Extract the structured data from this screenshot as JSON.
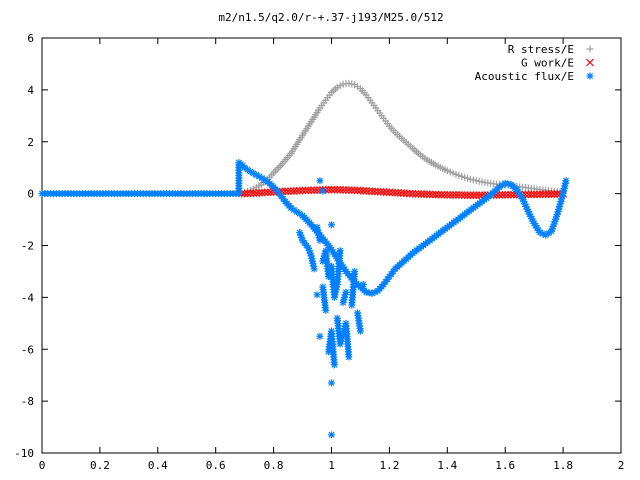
{
  "chart_data": {
    "type": "scatter",
    "title": "m2/n1.5/q2.0/r-+.37-j193/M25.0/512",
    "xlabel": "",
    "ylabel": "",
    "xlim": [
      0,
      2
    ],
    "ylim": [
      -10,
      6
    ],
    "xticks": [
      0,
      0.2,
      0.4,
      0.6,
      0.8,
      1,
      1.2,
      1.4,
      1.6,
      1.8,
      2
    ],
    "xtick_labels": [
      "0",
      "0.2",
      "0.4",
      "0.6",
      "0.8",
      "1",
      "1.2",
      "1.4",
      "1.6",
      "1.8",
      "2"
    ],
    "yticks": [
      -10,
      -8,
      -6,
      -4,
      -2,
      0,
      2,
      4,
      6
    ],
    "ytick_labels": [
      "-10",
      "-8",
      "-6",
      "-4",
      "-2",
      "0",
      "2",
      "4",
      "6"
    ],
    "grid": false,
    "legend_position": "top-right",
    "series": [
      {
        "name": "R stress/E",
        "color": "#a0a0a0",
        "marker": "plus",
        "points": [
          [
            0.69,
            0.0
          ],
          [
            0.72,
            0.12
          ],
          [
            0.75,
            0.3
          ],
          [
            0.78,
            0.55
          ],
          [
            0.8,
            0.8
          ],
          [
            0.83,
            1.15
          ],
          [
            0.86,
            1.55
          ],
          [
            0.88,
            1.9
          ],
          [
            0.9,
            2.25
          ],
          [
            0.92,
            2.6
          ],
          [
            0.94,
            2.95
          ],
          [
            0.96,
            3.3
          ],
          [
            0.98,
            3.6
          ],
          [
            1.0,
            3.9
          ],
          [
            1.02,
            4.1
          ],
          [
            1.04,
            4.22
          ],
          [
            1.06,
            4.25
          ],
          [
            1.08,
            4.2
          ],
          [
            1.1,
            4.05
          ],
          [
            1.12,
            3.8
          ],
          [
            1.14,
            3.5
          ],
          [
            1.16,
            3.2
          ],
          [
            1.18,
            2.9
          ],
          [
            1.2,
            2.6
          ],
          [
            1.22,
            2.35
          ],
          [
            1.25,
            2.05
          ],
          [
            1.28,
            1.75
          ],
          [
            1.3,
            1.55
          ],
          [
            1.33,
            1.3
          ],
          [
            1.36,
            1.1
          ],
          [
            1.4,
            0.88
          ],
          [
            1.44,
            0.7
          ],
          [
            1.48,
            0.55
          ],
          [
            1.52,
            0.45
          ],
          [
            1.56,
            0.38
          ],
          [
            1.6,
            0.33
          ],
          [
            1.64,
            0.28
          ],
          [
            1.68,
            0.22
          ],
          [
            1.72,
            0.16
          ],
          [
            1.76,
            0.1
          ],
          [
            1.8,
            0.05
          ]
        ]
      },
      {
        "name": "G work/E",
        "color": "#ff0000",
        "marker": "cross",
        "points": [
          [
            0.69,
            0.0
          ],
          [
            0.72,
            0.01
          ],
          [
            0.75,
            0.03
          ],
          [
            0.78,
            0.05
          ],
          [
            0.81,
            0.07
          ],
          [
            0.84,
            0.09
          ],
          [
            0.87,
            0.1
          ],
          [
            0.9,
            0.12
          ],
          [
            0.93,
            0.13
          ],
          [
            0.96,
            0.14
          ],
          [
            0.99,
            0.15
          ],
          [
            1.02,
            0.15
          ],
          [
            1.05,
            0.14
          ],
          [
            1.08,
            0.13
          ],
          [
            1.11,
            0.11
          ],
          [
            1.14,
            0.09
          ],
          [
            1.17,
            0.07
          ],
          [
            1.2,
            0.05
          ],
          [
            1.23,
            0.03
          ],
          [
            1.26,
            0.01
          ],
          [
            1.29,
            -0.01
          ],
          [
            1.32,
            -0.02
          ],
          [
            1.35,
            -0.03
          ],
          [
            1.38,
            -0.04
          ],
          [
            1.41,
            -0.05
          ],
          [
            1.44,
            -0.05
          ],
          [
            1.47,
            -0.06
          ],
          [
            1.5,
            -0.06
          ],
          [
            1.53,
            -0.06
          ],
          [
            1.56,
            -0.05
          ],
          [
            1.59,
            -0.05
          ],
          [
            1.62,
            -0.04
          ],
          [
            1.65,
            -0.04
          ],
          [
            1.68,
            -0.03
          ],
          [
            1.71,
            -0.03
          ],
          [
            1.74,
            -0.02
          ],
          [
            1.77,
            -0.02
          ],
          [
            1.8,
            -0.01
          ]
        ]
      },
      {
        "name": "Acoustic flux/E",
        "color": "#0080ff",
        "marker": "star",
        "points": [
          [
            0.0,
            0.0
          ],
          [
            0.03,
            0.0
          ],
          [
            0.06,
            0.0
          ],
          [
            0.09,
            0.0
          ],
          [
            0.12,
            0.0
          ],
          [
            0.15,
            0.0
          ],
          [
            0.18,
            0.0
          ],
          [
            0.21,
            0.0
          ],
          [
            0.24,
            0.0
          ],
          [
            0.27,
            0.0
          ],
          [
            0.3,
            0.0
          ],
          [
            0.33,
            0.0
          ],
          [
            0.36,
            0.0
          ],
          [
            0.39,
            0.0
          ],
          [
            0.42,
            0.0
          ],
          [
            0.45,
            0.0
          ],
          [
            0.48,
            0.0
          ],
          [
            0.51,
            0.0
          ],
          [
            0.54,
            0.0
          ],
          [
            0.57,
            0.0
          ],
          [
            0.6,
            0.0
          ],
          [
            0.63,
            0.0
          ],
          [
            0.66,
            0.0
          ],
          [
            0.68,
            0.0
          ],
          [
            0.68,
            1.2
          ],
          [
            0.7,
            1.0
          ],
          [
            0.72,
            0.85
          ],
          [
            0.74,
            0.72
          ],
          [
            0.76,
            0.6
          ],
          [
            0.78,
            0.45
          ],
          [
            0.8,
            0.25
          ],
          [
            0.82,
            0.0
          ],
          [
            0.84,
            -0.3
          ],
          [
            0.86,
            -0.55
          ],
          [
            0.88,
            -0.7
          ],
          [
            0.9,
            -0.85
          ],
          [
            0.93,
            -1.2
          ],
          [
            0.96,
            -1.6
          ],
          [
            0.99,
            -2.0
          ],
          [
            1.02,
            -2.5
          ],
          [
            1.05,
            -3.0
          ],
          [
            1.08,
            -3.4
          ],
          [
            1.1,
            -3.6
          ],
          [
            1.12,
            -3.8
          ],
          [
            1.14,
            -3.85
          ],
          [
            1.16,
            -3.75
          ],
          [
            1.18,
            -3.5
          ],
          [
            1.2,
            -3.2
          ],
          [
            1.22,
            -2.9
          ],
          [
            1.25,
            -2.6
          ],
          [
            1.28,
            -2.3
          ],
          [
            1.31,
            -2.05
          ],
          [
            1.34,
            -1.8
          ],
          [
            1.37,
            -1.55
          ],
          [
            1.4,
            -1.3
          ],
          [
            1.43,
            -1.05
          ],
          [
            1.46,
            -0.8
          ],
          [
            1.49,
            -0.55
          ],
          [
            1.52,
            -0.3
          ],
          [
            1.55,
            -0.05
          ],
          [
            1.58,
            0.25
          ],
          [
            1.6,
            0.4
          ],
          [
            1.62,
            0.35
          ],
          [
            1.64,
            0.15
          ],
          [
            1.66,
            -0.2
          ],
          [
            1.68,
            -0.7
          ],
          [
            1.7,
            -1.15
          ],
          [
            1.72,
            -1.5
          ],
          [
            1.74,
            -1.6
          ],
          [
            1.76,
            -1.45
          ],
          [
            1.78,
            -0.8
          ],
          [
            1.8,
            0.0
          ],
          [
            1.81,
            0.5
          ],
          [
            0.89,
            -1.5
          ],
          [
            0.9,
            -1.8
          ],
          [
            0.92,
            -2.1
          ],
          [
            0.93,
            -2.4
          ],
          [
            0.94,
            -2.9
          ],
          [
            0.95,
            -1.3
          ],
          [
            0.96,
            -1.8
          ],
          [
            0.96,
            0.5
          ],
          [
            0.97,
            -2.6
          ],
          [
            0.98,
            -2.2
          ],
          [
            0.99,
            -3.2
          ],
          [
            1.0,
            -1.2
          ],
          [
            1.0,
            -2.8
          ],
          [
            1.01,
            -4.0
          ],
          [
            1.02,
            -3.5
          ],
          [
            1.03,
            -2.2
          ],
          [
            1.04,
            -4.2
          ],
          [
            1.05,
            -3.8
          ],
          [
            0.95,
            -3.9
          ],
          [
            0.96,
            -5.5
          ],
          [
            0.97,
            -3.6
          ],
          [
            0.98,
            -4.5
          ],
          [
            0.99,
            -6.1
          ],
          [
            1.0,
            -5.3
          ],
          [
            1.01,
            -6.6
          ],
          [
            1.02,
            -4.8
          ],
          [
            1.03,
            -5.8
          ],
          [
            1.05,
            -5.0
          ],
          [
            1.06,
            -6.3
          ],
          [
            1.07,
            -4.3
          ],
          [
            1.08,
            -3.0
          ],
          [
            1.09,
            -4.6
          ],
          [
            1.1,
            -5.3
          ],
          [
            1.11,
            -3.5
          ],
          [
            1.0,
            -7.3
          ],
          [
            1.0,
            -9.3
          ],
          [
            0.97,
            0.1
          ]
        ]
      }
    ]
  }
}
